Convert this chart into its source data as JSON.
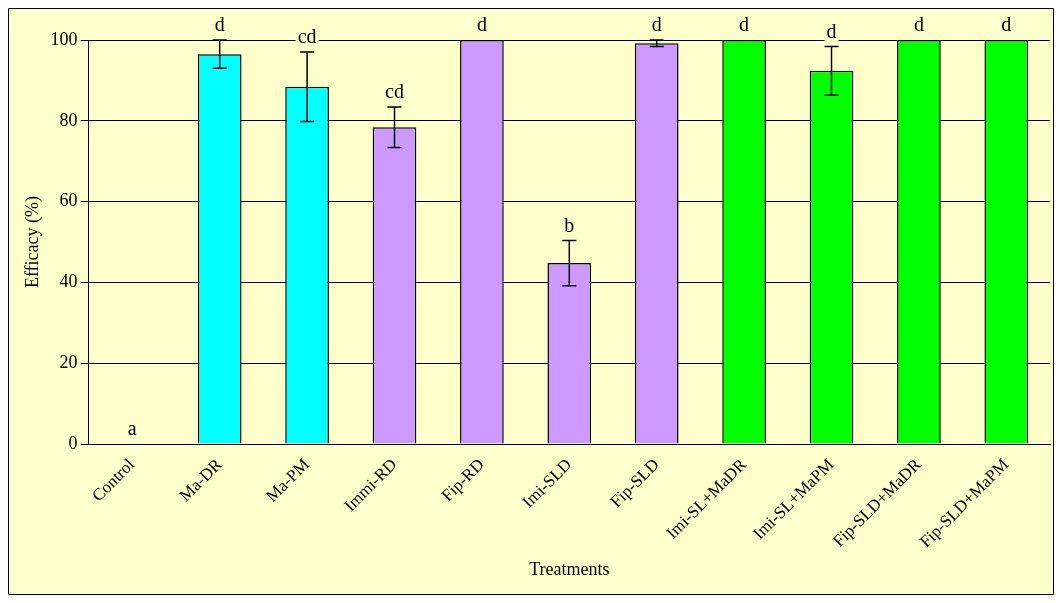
{
  "chart_data": {
    "type": "bar",
    "xlabel": "Treatments",
    "ylabel": "Efficacy (%)",
    "categories": [
      "Control",
      "Ma-DR",
      "Ma-PM",
      "Immi-RD",
      "Fip-RD",
      "Imi-SLD",
      "Fip-SLD",
      "Imi-SL+MaDR",
      "Imi-SL+MaPM",
      "Fip-SLD+MaDR",
      "Fip-SLD+MaPM"
    ],
    "values": [
      0,
      96.5,
      88.4,
      78.4,
      100,
      44.8,
      99.2,
      100,
      92.4,
      100,
      100
    ],
    "colors": [
      "#00ffff",
      "#00ffff",
      "#00ffff",
      "#cc99ff",
      "#cc99ff",
      "#cc99ff",
      "#cc99ff",
      "#00ff00",
      "#00ff00",
      "#00ff00",
      "#00ff00"
    ],
    "errors": [
      null,
      3.5,
      8.6,
      5,
      null,
      5.6,
      0.8,
      null,
      6,
      null,
      null
    ],
    "value_labels": [
      "a",
      "d",
      "cd",
      "cd",
      "d",
      "b",
      "d",
      "d",
      "d",
      "d",
      "d"
    ],
    "ylim": [
      0,
      100
    ],
    "yticks": [
      0,
      20,
      40,
      60,
      80,
      100
    ],
    "grid": "y",
    "legend": false
  }
}
